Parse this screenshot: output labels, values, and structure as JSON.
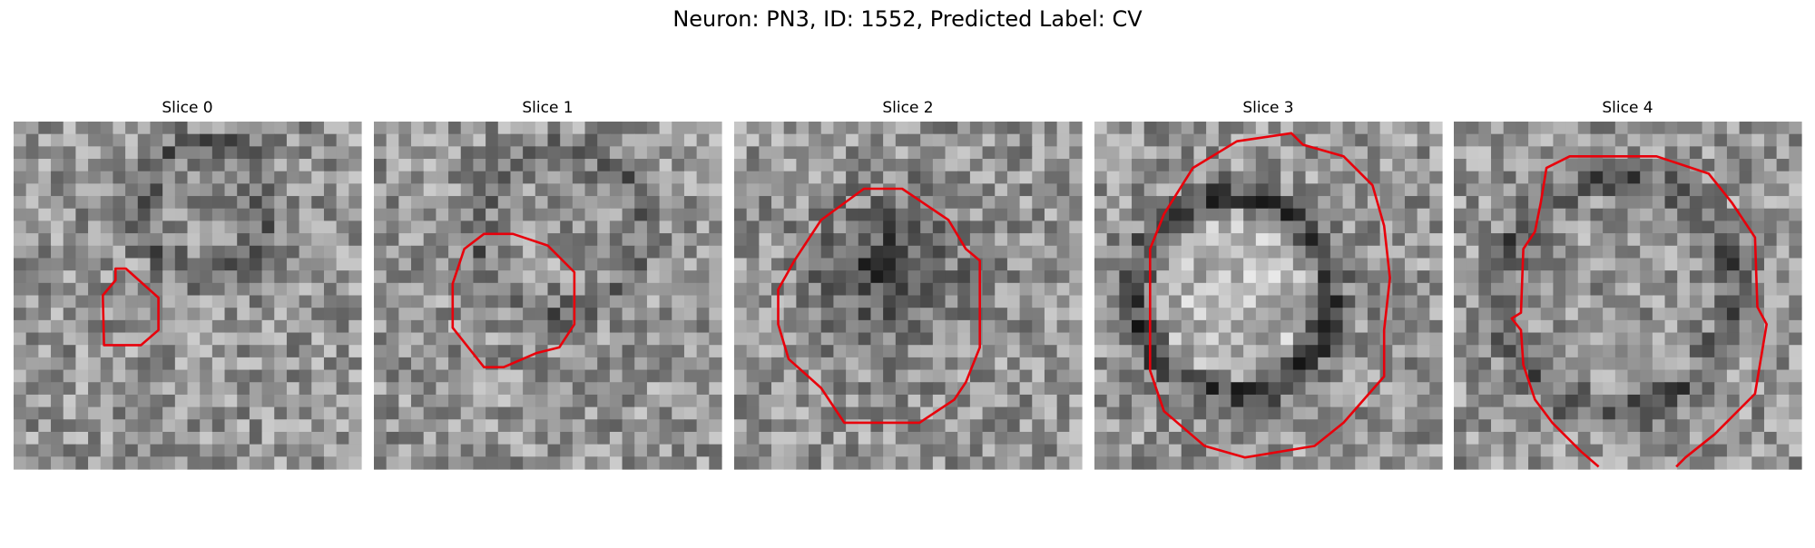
{
  "title": "Neuron: PN3, ID: 1552, Predicted Label: CV",
  "panels": [
    {
      "title": "Slice 0"
    },
    {
      "title": "Slice 1"
    },
    {
      "title": "Slice 2"
    },
    {
      "title": "Slice 3"
    },
    {
      "title": "Slice 4"
    }
  ]
}
